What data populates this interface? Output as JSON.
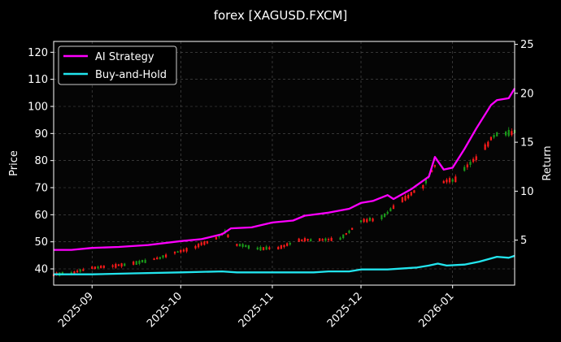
{
  "chart_data": {
    "type": "line",
    "title": "forex [XAGUSD.FXCM]",
    "ylabel_left": "Price",
    "ylabel_right": "Return",
    "ylim_left": [
      34,
      124
    ],
    "ylim_right": [
      0.4,
      25.3
    ],
    "yticks_left": [
      40,
      50,
      60,
      70,
      80,
      90,
      100,
      110,
      120
    ],
    "yticks_right": [
      5,
      10,
      15,
      20,
      25
    ],
    "xlim": [
      "2025-08-19",
      "2026-01-22"
    ],
    "xticks": [
      "2025-09",
      "2025-10",
      "2025-11",
      "2025-12",
      "2026-01"
    ],
    "grid": true,
    "legend_position": "top-left",
    "series": [
      {
        "name": "AI Strategy",
        "color": "#ff00ff",
        "axis": "right",
        "points": [
          [
            "2025-08-19",
            4.0
          ],
          [
            "2025-08-25",
            4.0
          ],
          [
            "2025-09-01",
            4.2
          ],
          [
            "2025-09-10",
            4.3
          ],
          [
            "2025-09-20",
            4.5
          ],
          [
            "2025-10-01",
            4.9
          ],
          [
            "2025-10-08",
            5.1
          ],
          [
            "2025-10-15",
            5.6
          ],
          [
            "2025-10-18",
            6.2
          ],
          [
            "2025-10-25",
            6.3
          ],
          [
            "2025-11-01",
            6.8
          ],
          [
            "2025-11-08",
            7.0
          ],
          [
            "2025-11-12",
            7.5
          ],
          [
            "2025-11-20",
            7.8
          ],
          [
            "2025-11-27",
            8.2
          ],
          [
            "2025-12-01",
            8.8
          ],
          [
            "2025-12-05",
            9.0
          ],
          [
            "2025-12-10",
            9.6
          ],
          [
            "2025-12-12",
            9.2
          ],
          [
            "2025-12-18",
            10.2
          ],
          [
            "2025-12-24",
            11.5
          ],
          [
            "2025-12-26",
            13.5
          ],
          [
            "2025-12-29",
            12.2
          ],
          [
            "2026-01-01",
            12.4
          ],
          [
            "2026-01-05",
            14.3
          ],
          [
            "2026-01-09",
            16.4
          ],
          [
            "2026-01-14",
            18.8
          ],
          [
            "2026-01-16",
            19.3
          ],
          [
            "2026-01-20",
            19.5
          ],
          [
            "2026-01-22",
            20.5
          ]
        ]
      },
      {
        "name": "Buy-and-Hold",
        "color": "#22e5ee",
        "axis": "right",
        "points": [
          [
            "2025-08-19",
            1.5
          ],
          [
            "2025-09-01",
            1.5
          ],
          [
            "2025-09-15",
            1.6
          ],
          [
            "2025-10-01",
            1.7
          ],
          [
            "2025-10-15",
            1.8
          ],
          [
            "2025-10-20",
            1.7
          ],
          [
            "2025-11-01",
            1.7
          ],
          [
            "2025-11-15",
            1.7
          ],
          [
            "2025-11-20",
            1.8
          ],
          [
            "2025-11-27",
            1.8
          ],
          [
            "2025-12-01",
            2.0
          ],
          [
            "2025-12-10",
            2.0
          ],
          [
            "2025-12-20",
            2.2
          ],
          [
            "2025-12-24",
            2.4
          ],
          [
            "2025-12-27",
            2.6
          ],
          [
            "2025-12-30",
            2.4
          ],
          [
            "2026-01-05",
            2.5
          ],
          [
            "2026-01-10",
            2.8
          ],
          [
            "2026-01-16",
            3.3
          ],
          [
            "2026-01-20",
            3.2
          ],
          [
            "2026-01-22",
            3.4
          ]
        ]
      }
    ],
    "price_path": [
      [
        "2025-08-19",
        37.8
      ],
      [
        "2025-08-25",
        38.5
      ],
      [
        "2025-09-01",
        40.5
      ],
      [
        "2025-09-08",
        41.0
      ],
      [
        "2025-09-15",
        42.0
      ],
      [
        "2025-09-22",
        43.5
      ],
      [
        "2025-09-29",
        46.0
      ],
      [
        "2025-10-06",
        48.0
      ],
      [
        "2025-10-13",
        51.5
      ],
      [
        "2025-10-16",
        53.5
      ],
      [
        "2025-10-20",
        49.0
      ],
      [
        "2025-10-27",
        47.5
      ],
      [
        "2025-11-03",
        47.8
      ],
      [
        "2025-11-10",
        50.5
      ],
      [
        "2025-11-17",
        50.8
      ],
      [
        "2025-11-24",
        51.0
      ],
      [
        "2025-12-01",
        57.5
      ],
      [
        "2025-12-08",
        59.0
      ],
      [
        "2025-12-15",
        65.5
      ],
      [
        "2025-12-22",
        70.5
      ],
      [
        "2025-12-26",
        78.0
      ],
      [
        "2025-12-29",
        72.0
      ],
      [
        "2026-01-02",
        73.0
      ],
      [
        "2026-01-06",
        78.0
      ],
      [
        "2026-01-10",
        82.0
      ],
      [
        "2026-01-14",
        88.0
      ],
      [
        "2026-01-16",
        90.0
      ],
      [
        "2026-01-22",
        90.5
      ]
    ]
  }
}
